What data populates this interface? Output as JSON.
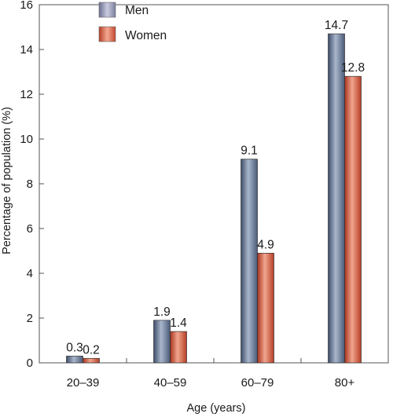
{
  "chart_data": {
    "type": "bar",
    "title": "",
    "xlabel": "Age (years)",
    "ylabel": "Percentage of population (%)",
    "categories": [
      "20–39",
      "40–59",
      "60–79",
      "80+"
    ],
    "series": [
      {
        "name": "Men",
        "values": [
          0.3,
          1.9,
          9.1,
          14.7
        ],
        "value_labels": [
          "0.3",
          "1.9",
          "9.1",
          "14.7"
        ],
        "color": "#6c7c9c"
      },
      {
        "name": "Women",
        "values": [
          0.2,
          1.4,
          4.9,
          12.8
        ],
        "value_labels": [
          "0.2",
          "1.4",
          "4.9",
          "12.8"
        ],
        "color": "#d4604a"
      }
    ],
    "ylim": [
      0,
      16
    ],
    "yticks": [
      0,
      2,
      4,
      6,
      8,
      10,
      12,
      14,
      16
    ],
    "grid": false,
    "legend": "top-left",
    "frame": "box",
    "gradient_bars": true
  }
}
